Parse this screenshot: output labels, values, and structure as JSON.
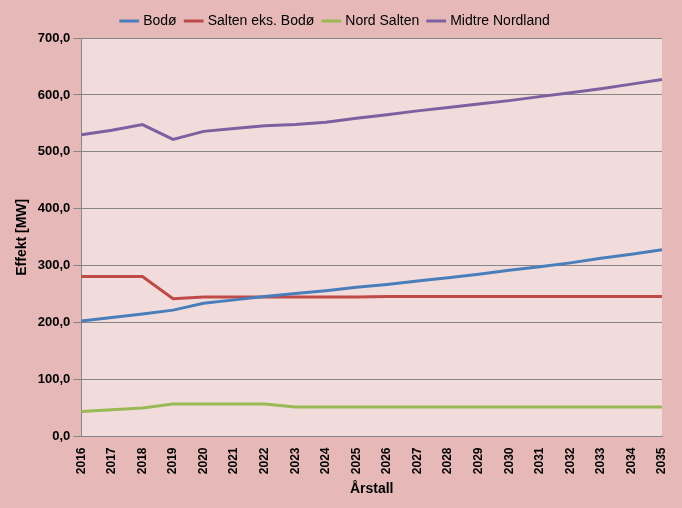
{
  "chart_data": {
    "type": "line",
    "x_label": "Årstall",
    "y_label": "Effekt [MW]",
    "categories": [
      "2016",
      "2017",
      "2018",
      "2019",
      "2020",
      "2021",
      "2022",
      "2023",
      "2024",
      "2025",
      "2026",
      "2027",
      "2028",
      "2029",
      "2030",
      "2031",
      "2032",
      "2033",
      "2034",
      "2035"
    ],
    "series": [
      {
        "name": "Bodø",
        "color": "#4a7ebb",
        "values": [
          203,
          209,
          215,
          222,
          234,
          240,
          246,
          251,
          256,
          262,
          267,
          273,
          279,
          285,
          292,
          298,
          305,
          313,
          320,
          328
        ]
      },
      {
        "name": "Salten eks. Bodø",
        "color": "#be4b48",
        "values": [
          281,
          281,
          281,
          242,
          245,
          245,
          245,
          245,
          245,
          245,
          246,
          246,
          246,
          246,
          246,
          246,
          246,
          246,
          246,
          246
        ]
      },
      {
        "name": "Nord Salten",
        "color": "#98b954",
        "values": [
          44,
          47,
          50,
          57,
          57,
          57,
          57,
          52,
          52,
          52,
          52,
          52,
          52,
          52,
          52,
          52,
          52,
          52,
          52,
          52
        ]
      },
      {
        "name": "Midtre Nordland",
        "color": "#7d60a0",
        "values": [
          530,
          538,
          548,
          522,
          536,
          541,
          546,
          548,
          552,
          559,
          565,
          572,
          578,
          584,
          590,
          597,
          604,
          611,
          619,
          627
        ]
      }
    ],
    "ylim": [
      0,
      700
    ],
    "yticks": [
      {
        "value": 0,
        "label": "0,0"
      },
      {
        "value": 100,
        "label": "100,0"
      },
      {
        "value": 200,
        "label": "200,0"
      },
      {
        "value": 300,
        "label": "300,0"
      },
      {
        "value": 400,
        "label": "400,0"
      },
      {
        "value": 500,
        "label": "500,0"
      },
      {
        "value": 600,
        "label": "600,0"
      },
      {
        "value": 700,
        "label": "700,0"
      }
    ],
    "grid": true,
    "legend": "top"
  }
}
